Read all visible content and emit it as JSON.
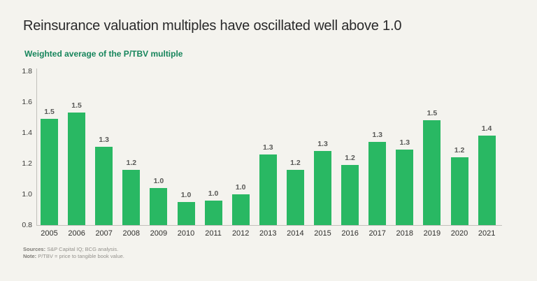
{
  "page": {
    "title": "Reinsurance valuation multiples have oscillated well above 1.0",
    "subtitle": "Weighted average of the P/TBV multiple",
    "background_color": "#f4f3ee"
  },
  "footer": {
    "sources_label": "Sources:",
    "sources_text": " S&P Capital IQ; BCG analysis.",
    "note_label": "Note:",
    "note_text": " P/TBV = price to tangible book value."
  },
  "chart_data": {
    "type": "bar",
    "title": "Weighted average of the P/TBV multiple",
    "categories": [
      "2005",
      "2006",
      "2007",
      "2008",
      "2009",
      "2010",
      "2011",
      "2012",
      "2013",
      "2014",
      "2015",
      "2016",
      "2017",
      "2018",
      "2019",
      "2020",
      "2021"
    ],
    "values": [
      1.49,
      1.53,
      1.31,
      1.16,
      1.04,
      0.95,
      0.96,
      1.0,
      1.26,
      1.16,
      1.28,
      1.19,
      1.34,
      1.29,
      1.48,
      1.24,
      1.38
    ],
    "labels": [
      "1.5",
      "1.5",
      "1.3",
      "1.2",
      "1.0",
      "1.0",
      "1.0",
      "1.0",
      "1.3",
      "1.2",
      "1.3",
      "1.2",
      "1.3",
      "1.3",
      "1.5",
      "1.2",
      "1.4"
    ],
    "xlabel": "",
    "ylabel": "",
    "ylim": [
      0.8,
      1.8
    ],
    "yticks": [
      "0.8",
      "1.0",
      "1.2",
      "1.4",
      "1.6",
      "1.8"
    ],
    "grid": false,
    "legend": "none",
    "bar_color": "#29b863",
    "axis_color": "#c2c0bb",
    "value_label_color": "#595957"
  }
}
